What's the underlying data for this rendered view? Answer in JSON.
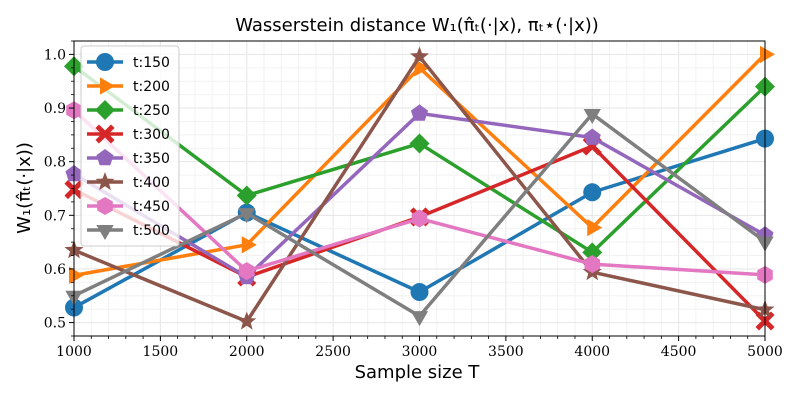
{
  "chart_data": {
    "type": "line",
    "title": "Wasserstein distance W₁(π̂ₜ(·|x), πₜ⋆(·|x))",
    "xlabel": "Sample size T",
    "ylabel": "W₁(π̂ₜ(·|x))",
    "x": [
      1000,
      2000,
      3000,
      4000,
      5000
    ],
    "xlim": [
      1000,
      5000
    ],
    "ylim": [
      0.475,
      1.025
    ],
    "xticks": [
      1000,
      1500,
      2000,
      2500,
      3000,
      3500,
      4000,
      4500,
      5000
    ],
    "yticks": [
      0.5,
      0.6,
      0.7,
      0.8,
      0.9,
      1.0
    ],
    "grid": true,
    "legend_position": "upper-left",
    "series": [
      {
        "name": "t:150",
        "color": "#1f77b4",
        "marker": "circle",
        "values": [
          0.528,
          0.705,
          0.557,
          0.743,
          0.843
        ]
      },
      {
        "name": "t:200",
        "color": "#ff7f0e",
        "marker": "triangle-right",
        "values": [
          0.588,
          0.645,
          0.975,
          0.677,
          1.0
        ]
      },
      {
        "name": "t:250",
        "color": "#2ca02c",
        "marker": "diamond",
        "values": [
          0.978,
          0.737,
          0.834,
          0.631,
          0.94
        ]
      },
      {
        "name": "t:300",
        "color": "#d62728",
        "marker": "x-filled",
        "values": [
          0.748,
          0.585,
          0.697,
          0.829,
          0.503
        ]
      },
      {
        "name": "t:350",
        "color": "#9467bd",
        "marker": "pentagon",
        "values": [
          0.777,
          0.585,
          0.89,
          0.845,
          0.663
        ]
      },
      {
        "name": "t:400",
        "color": "#8c564b",
        "marker": "star",
        "values": [
          0.635,
          0.502,
          0.996,
          0.594,
          0.524
        ]
      },
      {
        "name": "t:450",
        "color": "#e377c2",
        "marker": "hexagon",
        "values": [
          0.896,
          0.596,
          0.694,
          0.609,
          0.589
        ]
      },
      {
        "name": "t:500",
        "color": "#7f7f7f",
        "marker": "triangle-down",
        "values": [
          0.55,
          0.704,
          0.512,
          0.889,
          0.651
        ]
      }
    ]
  }
}
